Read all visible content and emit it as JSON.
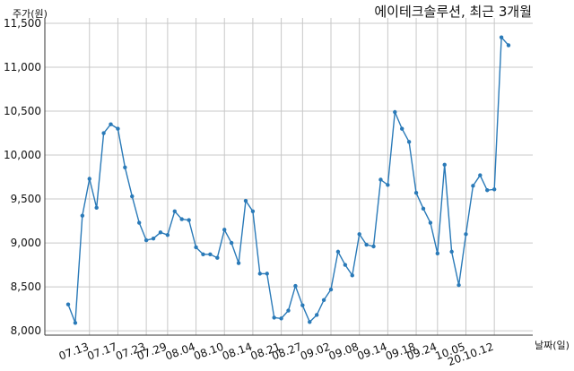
{
  "chart_data": {
    "type": "line",
    "title": "에이테크솔루션, 최근 3개월",
    "ylabel": "주가(원)",
    "xlabel": "날짜(일)",
    "ylim": [
      7950,
      11500
    ],
    "yticks": [
      8000,
      8500,
      9000,
      9500,
      10000,
      10500,
      11000,
      11500
    ],
    "ytick_labels": [
      "8,000",
      "8,500",
      "9,000",
      "9,500",
      "10,000",
      "10,500",
      "11,000",
      "11,500"
    ],
    "xtick_labels": [
      "07.13",
      "07.17",
      "07.23",
      "07.29",
      "08.04",
      "08.10",
      "08.14",
      "08.21",
      "08.27",
      "09.02",
      "09.08",
      "09.14",
      "09.18",
      "09.24",
      "10.05",
      "20.10.12"
    ],
    "grid": true,
    "colors": {
      "line": "#2a7ab8",
      "marker": "#2a7ab8",
      "grid": "#c8c8c8",
      "axis": "#333333"
    },
    "series": [
      {
        "values": [
          8300,
          8090,
          9310,
          9730,
          9400,
          10250,
          10350,
          10300,
          9860,
          9530,
          9230,
          9030,
          9050,
          9120,
          9090,
          9360,
          9270,
          9260,
          8950,
          8870,
          8870,
          8830,
          9150,
          9000,
          8770,
          9480,
          9360,
          8650,
          8650,
          8150,
          8140,
          8230,
          8510,
          8290,
          8100,
          8180,
          8350,
          8470,
          8900,
          8750,
          8630,
          9100,
          8980,
          8960,
          9720,
          9660,
          10490,
          10300,
          10150,
          9570,
          9390,
          9230,
          8880,
          9890,
          8900,
          8520,
          9100,
          9650,
          9770,
          9600,
          9610,
          11340,
          11250
        ]
      }
    ]
  }
}
